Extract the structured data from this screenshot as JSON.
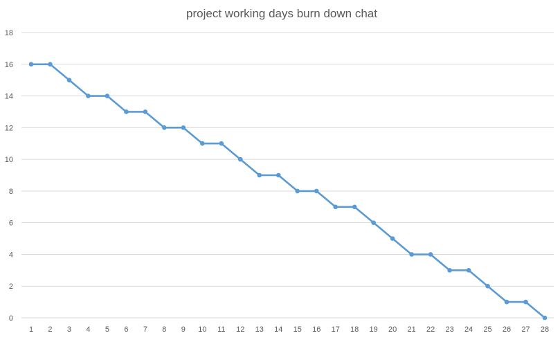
{
  "chart_data": {
    "type": "line",
    "title": "project working days burn down chat",
    "xlabel": "",
    "ylabel": "",
    "x": [
      1,
      2,
      3,
      4,
      5,
      6,
      7,
      8,
      9,
      10,
      11,
      12,
      13,
      14,
      15,
      16,
      17,
      18,
      19,
      20,
      21,
      22,
      23,
      24,
      25,
      26,
      27,
      28
    ],
    "series": [
      {
        "values": [
          16,
          16,
          15,
          14,
          14,
          13,
          13,
          12,
          12,
          11,
          11,
          10,
          9,
          9,
          8,
          8,
          7,
          7,
          6,
          5,
          4,
          4,
          3,
          3,
          2,
          1,
          1,
          0
        ],
        "color": "#5b9bd5"
      }
    ],
    "ylim": [
      0,
      18
    ],
    "yticks": [
      0,
      2,
      4,
      6,
      8,
      10,
      12,
      14,
      16,
      18
    ],
    "xlim": [
      1,
      28
    ],
    "grid": true,
    "legend": "none",
    "markers": true
  }
}
